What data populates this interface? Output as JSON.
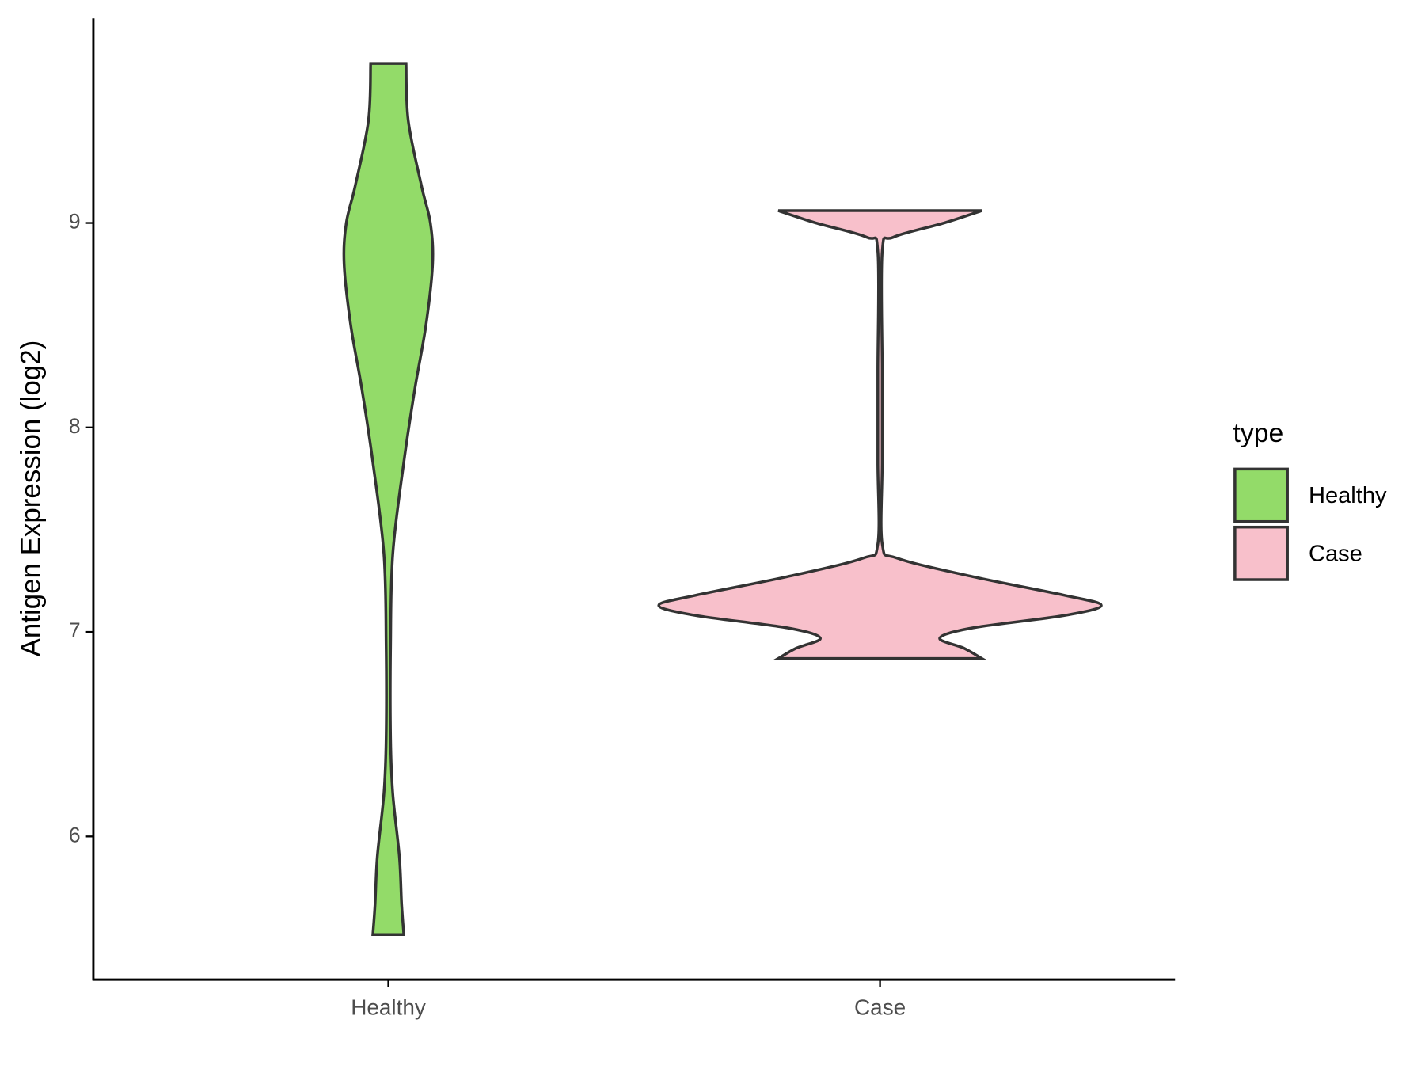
{
  "chart_data": {
    "type": "violin",
    "y_label": "Antigen Expression (log2)",
    "categories": [
      "Healthy",
      "Case"
    ],
    "legend_title": "type",
    "legend_position": "right",
    "ylim": [
      5.3,
      10.0
    ],
    "yticks": [
      6,
      7,
      8,
      9
    ],
    "grid": false,
    "series": [
      {
        "name": "Healthy",
        "color": "#93db69",
        "y": [
          9.78,
          9.5,
          9.18,
          9.0,
          8.8,
          8.5,
          8.19,
          7.83,
          7.38,
          6.93,
          6.48,
          6.21,
          5.9,
          5.67,
          5.52
        ],
        "density": [
          0.08,
          0.09,
          0.15,
          0.19,
          0.2,
          0.17,
          0.12,
          0.07,
          0.02,
          0.01,
          0.01,
          0.02,
          0.05,
          0.06,
          0.07
        ]
      },
      {
        "name": "Case",
        "color": "#f8c0cb",
        "y": [
          9.06,
          9.0,
          8.93,
          8.86,
          8.28,
          7.83,
          7.43,
          7.36,
          7.27,
          7.18,
          7.13,
          7.08,
          7.02,
          6.97,
          6.92,
          6.87
        ],
        "density": [
          0.46,
          0.29,
          0.06,
          0.01,
          0.01,
          0.01,
          0.01,
          0.08,
          0.42,
          0.83,
          1.0,
          0.83,
          0.42,
          0.27,
          0.38,
          0.46
        ]
      }
    ]
  }
}
